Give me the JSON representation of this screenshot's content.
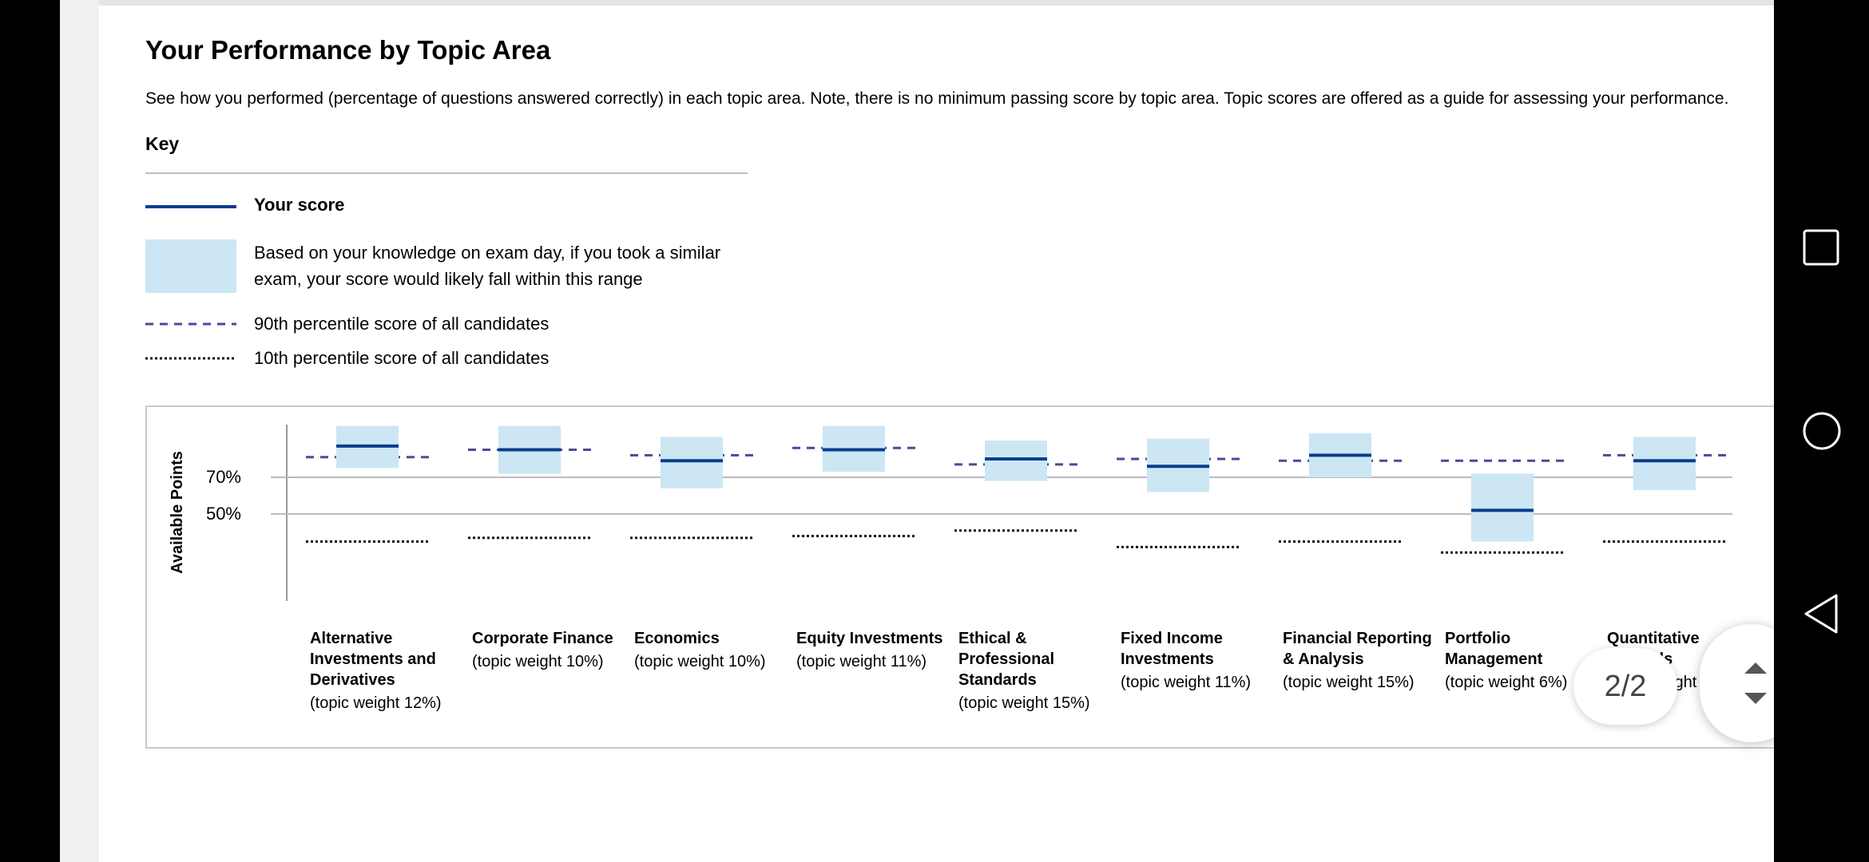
{
  "page": {
    "title": "Your Performance by Topic Area",
    "intro": "See how you performed (percentage of questions answered correctly) in each topic area. Note, there is no minimum passing score by topic area. Topic scores are offered as a guide for assessing your performance."
  },
  "key": {
    "heading": "Key",
    "your_score": "Your score",
    "range_line1": "Based on your knowledge on exam day, if you took a similar",
    "range_line2": "exam, your score would likely fall within this range",
    "p90": "90th percentile score of all candidates",
    "p10": "10th percentile score of all candidates"
  },
  "colors": {
    "score_line": "#0a3d91",
    "range_fill": "#cce6f4",
    "p90_dash": "#4a4a9a",
    "p10_dot": "#111111",
    "gridline": "#bbbbbb"
  },
  "chart_data": {
    "type": "range-plot",
    "ylabel": "Available Points",
    "y_ticks": [
      {
        "value": 70,
        "label": "70%"
      },
      {
        "value": 50,
        "label": "50%"
      }
    ],
    "topics": [
      {
        "name": "Alternative Investments and Derivatives",
        "weight": "(topic weight 12%)",
        "score": 87,
        "range": [
          75,
          98
        ],
        "p90": 81,
        "p10": 35
      },
      {
        "name": "Corporate Finance",
        "weight": "(topic weight 10%)",
        "score": 85,
        "range": [
          72,
          98
        ],
        "p90": 85,
        "p10": 37
      },
      {
        "name": "Economics",
        "weight": "(topic weight 10%)",
        "score": 79,
        "range": [
          64,
          92
        ],
        "p90": 82,
        "p10": 37
      },
      {
        "name": "Equity Investments",
        "weight": "(topic weight 11%)",
        "score": 85,
        "range": [
          73,
          98
        ],
        "p90": 86,
        "p10": 38
      },
      {
        "name": "Ethical & Professional Standards",
        "weight": "(topic weight 15%)",
        "score": 80,
        "range": [
          68,
          90
        ],
        "p90": 77,
        "p10": 41
      },
      {
        "name": "Fixed Income Investments",
        "weight": "(topic weight 11%)",
        "score": 76,
        "range": [
          62,
          91
        ],
        "p90": 80,
        "p10": 32
      },
      {
        "name": "Financial Reporting & Analysis",
        "weight": "(topic weight 15%)",
        "score": 82,
        "range": [
          70,
          94
        ],
        "p90": 79,
        "p10": 35
      },
      {
        "name": "Portfolio Management",
        "weight": "(topic weight 6%)",
        "score": 52,
        "range": [
          35,
          72
        ],
        "p90": 79,
        "p10": 29
      },
      {
        "name": "Quantitative Methods",
        "weight": "(topic weight",
        "score": 79,
        "range": [
          63,
          92
        ],
        "p90": 82,
        "p10": 35
      }
    ]
  },
  "overlay": {
    "page_indicator": "2/2"
  },
  "icons": {
    "recents": "square-icon",
    "home": "circle-icon",
    "back": "triangle-back-icon",
    "scroll": "scroll-arrows-icon"
  }
}
